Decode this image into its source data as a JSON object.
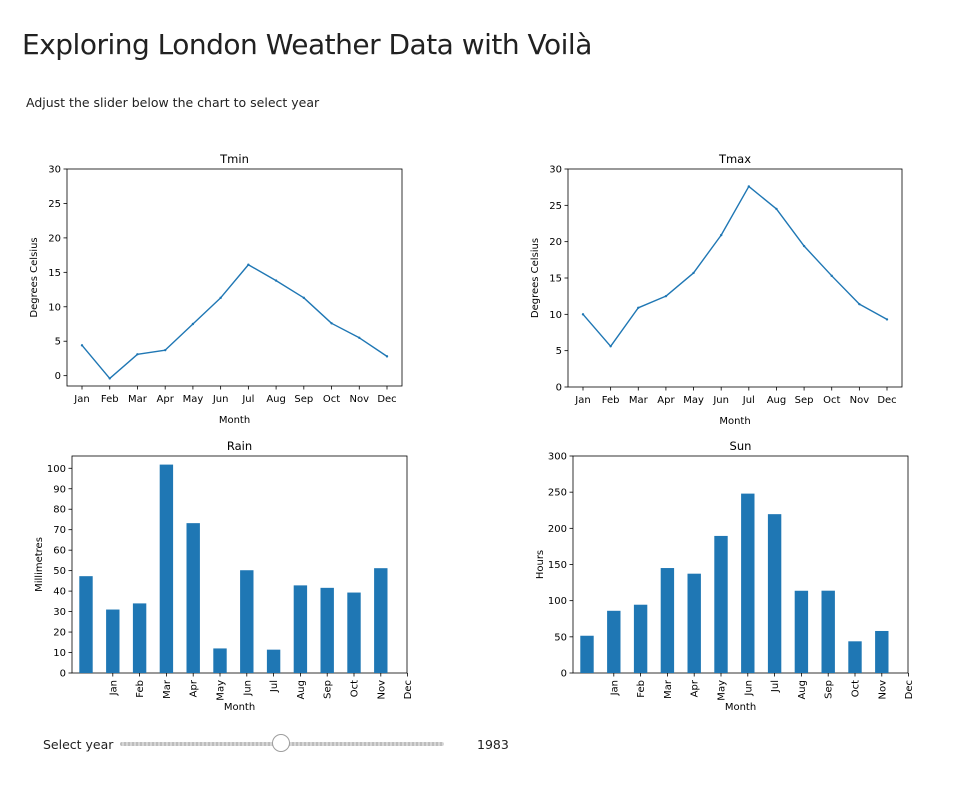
{
  "header": {
    "title": "Exploring London Weather Data with Voilà",
    "subtitle": "Adjust the slider below the chart to select year"
  },
  "slider": {
    "label": "Select year",
    "value": "1983",
    "fraction": 0.495
  },
  "colors": {
    "series": "#1f77b4",
    "axes": "#000000"
  },
  "chart_data": [
    {
      "id": "tmin",
      "type": "line",
      "title": "Tmin",
      "xlabel": "Month",
      "ylabel": "Degrees Celsius",
      "categories": [
        "Jan",
        "Feb",
        "Mar",
        "Apr",
        "May",
        "Jun",
        "Jul",
        "Aug",
        "Sep",
        "Oct",
        "Nov",
        "Dec"
      ],
      "values": [
        4.4,
        -0.4,
        3.1,
        3.7,
        7.5,
        11.3,
        16.1,
        13.8,
        11.3,
        7.6,
        5.5,
        2.8
      ],
      "ylim": [
        -1.5,
        30
      ],
      "yticks": [
        0,
        5,
        10,
        15,
        20,
        25,
        30
      ],
      "grid": false
    },
    {
      "id": "tmax",
      "type": "line",
      "title": "Tmax",
      "xlabel": "Month",
      "ylabel": "Degrees Celsius",
      "categories": [
        "Jan",
        "Feb",
        "Mar",
        "Apr",
        "May",
        "Jun",
        "Jul",
        "Aug",
        "Sep",
        "Oct",
        "Nov",
        "Dec"
      ],
      "values": [
        10.0,
        5.6,
        10.9,
        12.5,
        15.7,
        20.9,
        27.6,
        24.5,
        19.4,
        15.3,
        11.4,
        9.3
      ],
      "ylim": [
        0,
        30
      ],
      "yticks": [
        0,
        5,
        10,
        15,
        20,
        25,
        30
      ],
      "grid": false
    },
    {
      "id": "rain",
      "type": "bar",
      "title": "Rain",
      "xlabel": "Month",
      "ylabel": "Millimetres",
      "categories": [
        "Jan",
        "Feb",
        "Mar",
        "Apr",
        "May",
        "Jun",
        "Jul",
        "Aug",
        "Sep",
        "Oct",
        "Nov",
        "Dec"
      ],
      "values": [
        47.3,
        31.0,
        34.0,
        101.8,
        73.2,
        12.0,
        50.2,
        11.4,
        42.8,
        41.6,
        39.3,
        51.2
      ],
      "ylim": [
        0,
        106
      ],
      "yticks": [
        0,
        10,
        20,
        30,
        40,
        50,
        60,
        70,
        80,
        90,
        100
      ],
      "grid": false
    },
    {
      "id": "sun",
      "type": "bar",
      "title": "Sun",
      "xlabel": "Month",
      "ylabel": "Hours",
      "categories": [
        "Jan",
        "Feb",
        "Mar",
        "Apr",
        "May",
        "Jun",
        "Jul",
        "Aug",
        "Sep",
        "Oct",
        "Nov",
        "Dec"
      ],
      "values": [
        51.5,
        86.0,
        94.4,
        145.1,
        137.3,
        189.5,
        248.0,
        219.6,
        113.7,
        113.8,
        43.8,
        58.1
      ],
      "ylim": [
        0,
        300
      ],
      "yticks": [
        0,
        50,
        100,
        150,
        200,
        250,
        300
      ],
      "grid": false
    }
  ]
}
